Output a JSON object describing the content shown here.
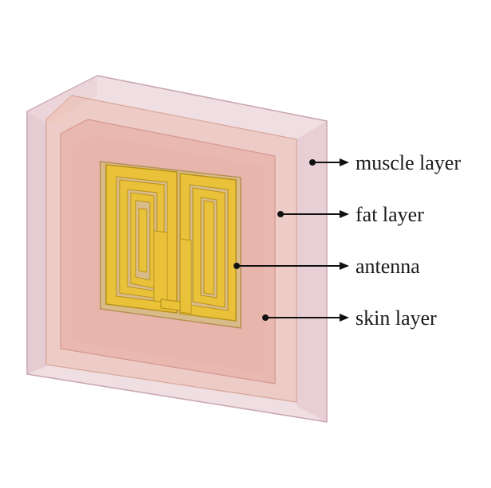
{
  "labels": {
    "muscle": "muscle layer",
    "fat": "fat layer",
    "antenna": "antenna",
    "skin": "skin layer"
  },
  "colors": {
    "muscle": "#e8c8cf",
    "fat": "#eec0b6",
    "skin": "#e9b3ac",
    "antenna": "#e9c23a",
    "antenna_edge": "#b9921a",
    "arrow": "#111111"
  }
}
